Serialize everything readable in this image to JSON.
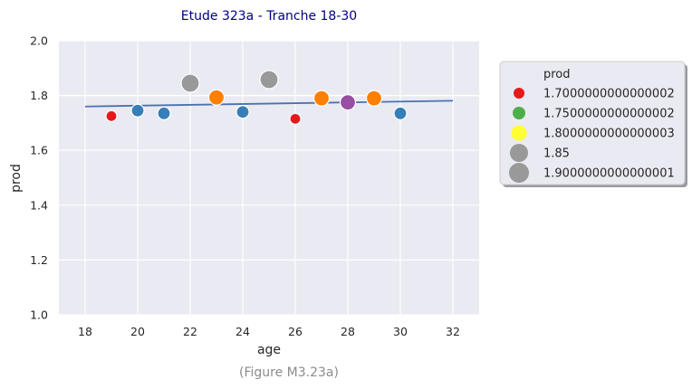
{
  "chart_data": {
    "type": "scatter",
    "title": "Etude 323a - Tranche 18-30",
    "caption": "(Figure M3.23a)",
    "xlabel": "age",
    "ylabel": "prod",
    "xlim": [
      17,
      33
    ],
    "ylim": [
      1.0,
      2.0
    ],
    "xticks": [
      18,
      20,
      22,
      24,
      26,
      28,
      30,
      32
    ],
    "yticks": [
      1.0,
      1.2,
      1.4,
      1.6,
      1.8,
      2.0
    ],
    "ytick_labels": [
      "1.0",
      "1.2",
      "1.4",
      "1.6",
      "1.8",
      "2.0"
    ],
    "grid": true,
    "legend_position": "right",
    "legend_title": "prod",
    "legend": [
      {
        "label": "1.7000000000000002",
        "color": "#e41a1c",
        "size": 1
      },
      {
        "label": "1.7500000000000002",
        "color": "#4daf4a",
        "size": 2
      },
      {
        "label": "1.8000000000000003",
        "color": "#ffff33",
        "size": 3
      },
      {
        "label": "1.85",
        "color": "#999999",
        "size": 4
      },
      {
        "label": "1.9000000000000001",
        "color": "#999999",
        "size": 5
      }
    ],
    "points": [
      {
        "x": 19,
        "y": 1.725,
        "color": "#e41a1c",
        "size": 1
      },
      {
        "x": 20,
        "y": 1.745,
        "color": "#377eb8",
        "size": 2
      },
      {
        "x": 21,
        "y": 1.735,
        "color": "#377eb8",
        "size": 2
      },
      {
        "x": 22,
        "y": 1.845,
        "color": "#999999",
        "size": 4
      },
      {
        "x": 23,
        "y": 1.793,
        "color": "#ff7f00",
        "size": 3
      },
      {
        "x": 24,
        "y": 1.74,
        "color": "#377eb8",
        "size": 2
      },
      {
        "x": 25,
        "y": 1.858,
        "color": "#999999",
        "size": 4
      },
      {
        "x": 26,
        "y": 1.715,
        "color": "#e41a1c",
        "size": 1
      },
      {
        "x": 27,
        "y": 1.79,
        "color": "#ff7f00",
        "size": 3
      },
      {
        "x": 28,
        "y": 1.775,
        "color": "#984ea3",
        "size": 3
      },
      {
        "x": 29,
        "y": 1.79,
        "color": "#ff7f00",
        "size": 3
      },
      {
        "x": 30,
        "y": 1.735,
        "color": "#377eb8",
        "size": 2
      }
    ],
    "fit_line": {
      "x": [
        18,
        32
      ],
      "y": [
        1.76,
        1.781
      ],
      "color": "#4c72b0"
    }
  }
}
